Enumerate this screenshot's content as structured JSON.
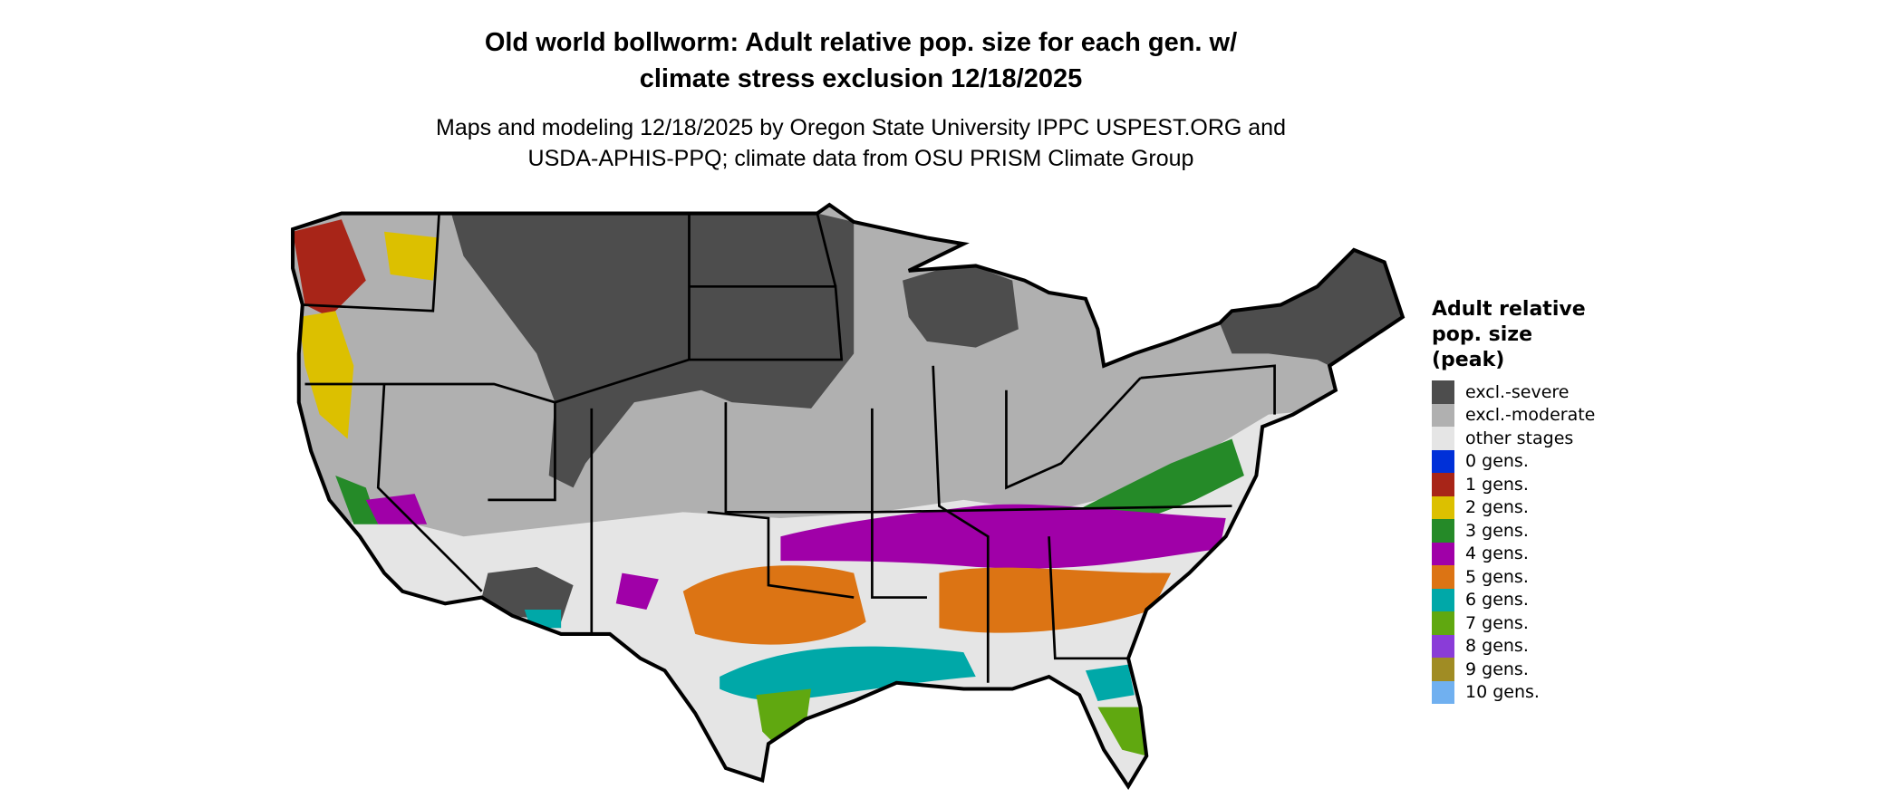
{
  "title": {
    "line1": "Old world bollworm: Adult relative pop. size for each gen. w/",
    "line2": "climate stress exclusion 12/18/2025"
  },
  "subtitle": {
    "line1": "Maps and modeling 12/18/2025 by Oregon State University IPPC USPEST.ORG and",
    "line2": "USDA-APHIS-PPQ; climate data from OSU PRISM Climate Group"
  },
  "legend": {
    "title_lines": [
      "Adult relative",
      "pop. size",
      "(peak)"
    ],
    "items": [
      {
        "label": "excl.-severe",
        "color": "#4d4d4d"
      },
      {
        "label": "excl.-moderate",
        "color": "#b0b0b0"
      },
      {
        "label": "other stages",
        "color": "#e5e5e5"
      },
      {
        "label": "0 gens.",
        "color": "#0030d8"
      },
      {
        "label": "1 gens.",
        "color": "#a82518"
      },
      {
        "label": "2 gens.",
        "color": "#dcc000"
      },
      {
        "label": "3 gens.",
        "color": "#258a28"
      },
      {
        "label": "4 gens.",
        "color": "#a000a8"
      },
      {
        "label": "5 gens.",
        "color": "#dc7414"
      },
      {
        "label": "6 gens.",
        "color": "#00a8a8"
      },
      {
        "label": "7 gens.",
        "color": "#60a810"
      },
      {
        "label": "8 gens.",
        "color": "#8a3cd8"
      },
      {
        "label": "9 gens.",
        "color": "#a08c24"
      },
      {
        "label": "10 gens.",
        "color": "#70b0f0"
      }
    ]
  }
}
